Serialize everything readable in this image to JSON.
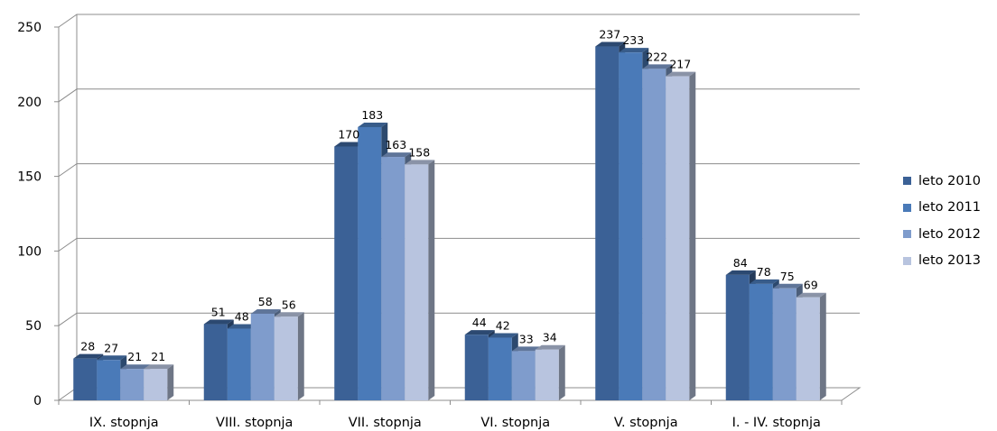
{
  "chart_data": {
    "type": "bar",
    "categories": [
      "IX. stopnja",
      "VIII. stopnja",
      "VII. stopnja",
      "VI. stopnja",
      "V. stopnja",
      "I. - IV. stopnja"
    ],
    "series": [
      {
        "name": "leto 2010",
        "values": [
          28,
          51,
          170,
          44,
          237,
          84
        ],
        "color": "#3b6196"
      },
      {
        "name": "leto 2011",
        "values": [
          27,
          48,
          183,
          42,
          233,
          78
        ],
        "color": "#4a7ab8"
      },
      {
        "name": "leto 2012",
        "values": [
          21,
          58,
          163,
          33,
          222,
          75
        ],
        "color": "#7f9ccc"
      },
      {
        "name": "leto 2013",
        "values": [
          21,
          56,
          158,
          34,
          217,
          69
        ],
        "color": "#b8c4df"
      }
    ],
    "y_ticks": [
      "0",
      "50",
      "100",
      "150",
      "200",
      "250"
    ],
    "ylim": [
      0,
      250
    ],
    "grid": true,
    "legend_position": "right",
    "title": "",
    "xlabel": "",
    "ylabel": ""
  }
}
